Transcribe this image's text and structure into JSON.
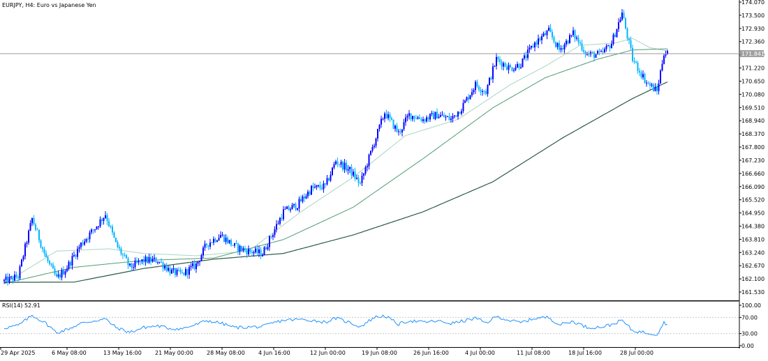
{
  "chart_title": "EURJPY, H4:  Euro vs Japanese Yen",
  "rsi_label": "RSI(14) 52.91",
  "current_price": "171.841",
  "colors": {
    "bull": "#0000ff",
    "bear": "#00b4ff",
    "ma_fast": "#a7d6c0",
    "ma_mid": "#4e9a72",
    "ma_slow": "#2b5b45",
    "rsi": "#1e90ff",
    "grid": "#c8c8c8"
  },
  "chart_data": [
    {
      "type": "candlestick",
      "symbol": "EURJPY",
      "timeframe": "H4",
      "ylim": [
        161.2,
        174.07
      ],
      "y_ticks": [
        "174.070",
        "173.500",
        "172.930",
        "172.360",
        "171.790",
        "171.220",
        "170.650",
        "170.080",
        "169.510",
        "168.940",
        "168.370",
        "167.800",
        "167.230",
        "166.660",
        "166.090",
        "165.520",
        "164.950",
        "164.380",
        "163.810",
        "163.240",
        "162.670",
        "162.100",
        "161.530"
      ],
      "x_ticks": [
        "29 Apr 2025",
        "6 May 08:00",
        "13 May 16:00",
        "21 May 00:00",
        "28 May 08:00",
        "4 Jun 16:00",
        "12 Jun 00:00",
        "19 Jun 08:00",
        "26 Jun 16:00",
        "4 Jul 00:00",
        "11 Jul 08:00",
        "18 Jul 16:00",
        "28 Jul 00:00"
      ],
      "current_price": 171.841,
      "close_anchors": [
        [
          0,
          162.0
        ],
        [
          8,
          162.2
        ],
        [
          16,
          164.7
        ],
        [
          24,
          163.0
        ],
        [
          30,
          162.1
        ],
        [
          36,
          162.6
        ],
        [
          44,
          163.6
        ],
        [
          52,
          164.3
        ],
        [
          58,
          164.9
        ],
        [
          64,
          163.6
        ],
        [
          72,
          162.6
        ],
        [
          80,
          162.9
        ],
        [
          88,
          162.9
        ],
        [
          96,
          162.4
        ],
        [
          102,
          162.3
        ],
        [
          110,
          162.7
        ],
        [
          116,
          163.6
        ],
        [
          124,
          164.0
        ],
        [
          132,
          163.5
        ],
        [
          140,
          163.3
        ],
        [
          148,
          163.2
        ],
        [
          154,
          164.1
        ],
        [
          160,
          165.0
        ],
        [
          168,
          165.3
        ],
        [
          176,
          166.0
        ],
        [
          184,
          166.1
        ],
        [
          190,
          167.2
        ],
        [
          198,
          166.8
        ],
        [
          204,
          166.2
        ],
        [
          212,
          168.0
        ],
        [
          218,
          169.3
        ],
        [
          226,
          168.4
        ],
        [
          232,
          169.2
        ],
        [
          240,
          169.0
        ],
        [
          248,
          169.2
        ],
        [
          256,
          169.0
        ],
        [
          262,
          169.5
        ],
        [
          270,
          170.5
        ],
        [
          276,
          170.2
        ],
        [
          282,
          171.6
        ],
        [
          290,
          171.2
        ],
        [
          296,
          171.4
        ],
        [
          304,
          172.3
        ],
        [
          312,
          172.8
        ],
        [
          318,
          172.0
        ],
        [
          326,
          172.7
        ],
        [
          334,
          171.8
        ],
        [
          342,
          171.8
        ],
        [
          348,
          172.3
        ],
        [
          354,
          173.6
        ],
        [
          360,
          171.6
        ],
        [
          368,
          170.6
        ],
        [
          374,
          170.2
        ],
        [
          378,
          171.9
        ],
        [
          380,
          171.84
        ]
      ],
      "ma_slow_anchors": [
        [
          0,
          161.95
        ],
        [
          40,
          161.96
        ],
        [
          80,
          162.55
        ],
        [
          120,
          162.95
        ],
        [
          160,
          163.2
        ],
        [
          200,
          164.0
        ],
        [
          240,
          165.0
        ],
        [
          280,
          166.3
        ],
        [
          320,
          168.2
        ],
        [
          360,
          169.9
        ],
        [
          380,
          170.62
        ]
      ],
      "ma_mid_anchors": [
        [
          0,
          161.9
        ],
        [
          40,
          162.6
        ],
        [
          80,
          162.9
        ],
        [
          120,
          163.0
        ],
        [
          160,
          163.8
        ],
        [
          200,
          165.2
        ],
        [
          240,
          167.3
        ],
        [
          280,
          169.5
        ],
        [
          310,
          170.8
        ],
        [
          340,
          171.6
        ],
        [
          360,
          172.0
        ],
        [
          380,
          172.05
        ]
      ],
      "ma_fast_anchors": [
        [
          0,
          161.9
        ],
        [
          30,
          163.3
        ],
        [
          60,
          163.4
        ],
        [
          80,
          163.2
        ],
        [
          110,
          163.1
        ],
        [
          140,
          163.3
        ],
        [
          170,
          165.0
        ],
        [
          200,
          166.5
        ],
        [
          230,
          168.3
        ],
        [
          260,
          169.0
        ],
        [
          290,
          170.5
        ],
        [
          310,
          171.3
        ],
        [
          330,
          172.2
        ],
        [
          350,
          172.3
        ],
        [
          360,
          172.5
        ],
        [
          370,
          172.1
        ],
        [
          380,
          171.95
        ]
      ]
    },
    {
      "type": "line",
      "name": "RSI(14) 52.91",
      "ylim": [
        0,
        100
      ],
      "y_ticks": [
        "100.00",
        "70.00",
        "30.00",
        "0.00"
      ],
      "levels": [
        70,
        30
      ],
      "anchors": [
        [
          0,
          44
        ],
        [
          8,
          50
        ],
        [
          16,
          75
        ],
        [
          24,
          55
        ],
        [
          30,
          32
        ],
        [
          36,
          40
        ],
        [
          44,
          55
        ],
        [
          52,
          62
        ],
        [
          58,
          66
        ],
        [
          64,
          45
        ],
        [
          72,
          33
        ],
        [
          80,
          45
        ],
        [
          88,
          49
        ],
        [
          96,
          42
        ],
        [
          102,
          42
        ],
        [
          110,
          52
        ],
        [
          116,
          62
        ],
        [
          124,
          56
        ],
        [
          132,
          45
        ],
        [
          140,
          46
        ],
        [
          148,
          47
        ],
        [
          154,
          56
        ],
        [
          160,
          63
        ],
        [
          168,
          65
        ],
        [
          176,
          63
        ],
        [
          184,
          58
        ],
        [
          190,
          68
        ],
        [
          198,
          57
        ],
        [
          204,
          47
        ],
        [
          212,
          70
        ],
        [
          218,
          74
        ],
        [
          226,
          53
        ],
        [
          232,
          62
        ],
        [
          240,
          58
        ],
        [
          248,
          61
        ],
        [
          256,
          55
        ],
        [
          262,
          60
        ],
        [
          270,
          68
        ],
        [
          276,
          56
        ],
        [
          282,
          72
        ],
        [
          290,
          62
        ],
        [
          296,
          57
        ],
        [
          304,
          68
        ],
        [
          312,
          70
        ],
        [
          318,
          52
        ],
        [
          326,
          60
        ],
        [
          334,
          45
        ],
        [
          342,
          46
        ],
        [
          348,
          52
        ],
        [
          354,
          63
        ],
        [
          360,
          37
        ],
        [
          368,
          32
        ],
        [
          374,
          28
        ],
        [
          378,
          58
        ],
        [
          380,
          52.91
        ]
      ]
    }
  ]
}
